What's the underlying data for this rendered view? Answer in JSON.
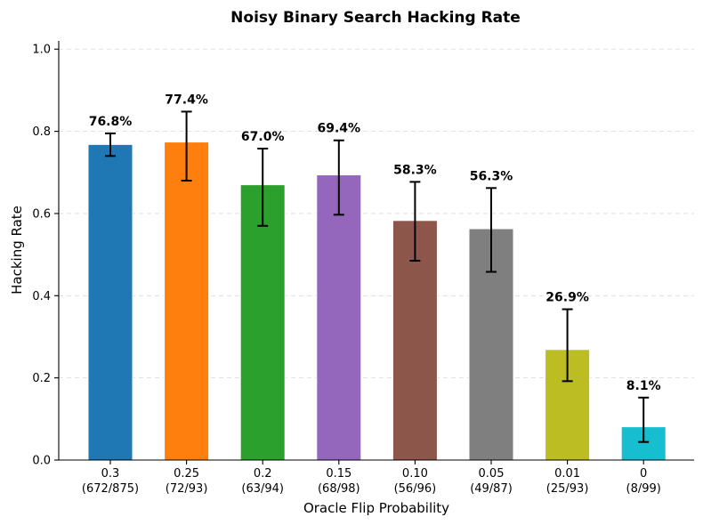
{
  "chart_data": {
    "type": "bar",
    "title": "Noisy Binary Search Hacking Rate",
    "xlabel": "Oracle Flip Probability",
    "ylabel": "Hacking Rate",
    "ylim": [
      0,
      1.02
    ],
    "yticks": [
      "0.0",
      "0.2",
      "0.4",
      "0.6",
      "0.8",
      "1.0"
    ],
    "grid": "horizontal dashed",
    "categories": [
      "0.3",
      "0.25",
      "0.2",
      "0.15",
      "0.10",
      "0.05",
      "0.01",
      "0"
    ],
    "counts": [
      "(672/875)",
      "(72/93)",
      "(63/94)",
      "(68/98)",
      "(56/96)",
      "(49/87)",
      "(25/93)",
      "(8/99)"
    ],
    "values": [
      0.768,
      0.774,
      0.67,
      0.694,
      0.583,
      0.563,
      0.269,
      0.081
    ],
    "value_labels": [
      "76.8%",
      "77.4%",
      "67.0%",
      "69.4%",
      "58.3%",
      "56.3%",
      "26.9%",
      "8.1%"
    ],
    "error_low": [
      0.74,
      0.68,
      0.57,
      0.597,
      0.485,
      0.458,
      0.192,
      0.044
    ],
    "error_high": [
      0.795,
      0.848,
      0.758,
      0.778,
      0.677,
      0.662,
      0.367,
      0.152
    ],
    "colors": [
      "#1f77b4",
      "#ff7f0e",
      "#2ca02c",
      "#9467bd",
      "#8c564b",
      "#7f7f7f",
      "#bcbd22",
      "#17becf"
    ]
  }
}
